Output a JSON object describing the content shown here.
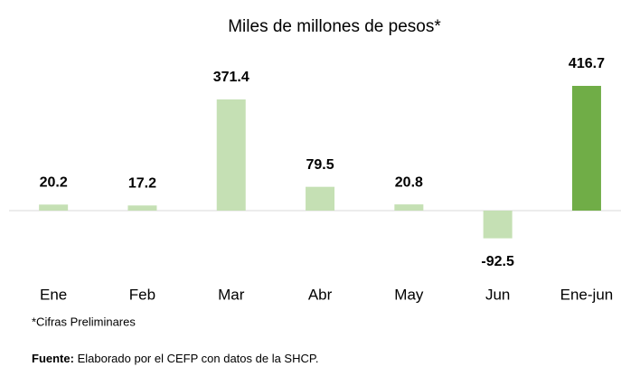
{
  "chart_data": {
    "type": "bar",
    "title": "Miles de millones de pesos*",
    "categories": [
      "Ene",
      "Feb",
      "Mar",
      "Abr",
      "May",
      "Jun",
      "Ene-jun"
    ],
    "values": [
      20.2,
      17.2,
      371.4,
      79.5,
      20.8,
      -92.5,
      416.7
    ],
    "colors": [
      "#c5e0b4",
      "#c5e0b4",
      "#c5e0b4",
      "#c5e0b4",
      "#c5e0b4",
      "#c5e0b4",
      "#70ad47"
    ],
    "note": "*Cifras Preliminares",
    "source_label": "Fuente:",
    "source": "Elaborado por el CEFP con datos de la SHCP."
  }
}
